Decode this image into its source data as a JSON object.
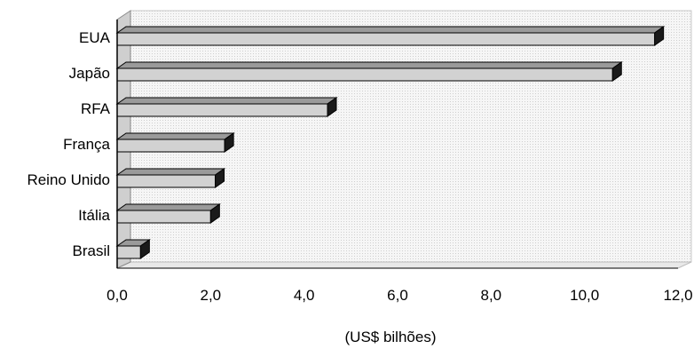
{
  "chart_data": {
    "type": "bar",
    "orientation": "horizontal",
    "style": "3d",
    "categories": [
      "EUA",
      "Japão",
      "RFA",
      "França",
      "Reino Unido",
      "Itália",
      "Brasil"
    ],
    "values": [
      11.5,
      10.6,
      4.5,
      2.3,
      2.1,
      2.0,
      0.5
    ],
    "xlabel": "(US$ bilhões)",
    "xlim": [
      0,
      12
    ],
    "xticks": [
      "0,0",
      "2,0",
      "4,0",
      "6,0",
      "8,0",
      "10,0",
      "12,0"
    ],
    "grid": false,
    "legend": "none",
    "colors": {
      "bar_front": "#d2d2d2",
      "bar_top": "#9a9a9a",
      "bar_side": "#1a1a1a",
      "wall": "#f3f3f3"
    }
  }
}
